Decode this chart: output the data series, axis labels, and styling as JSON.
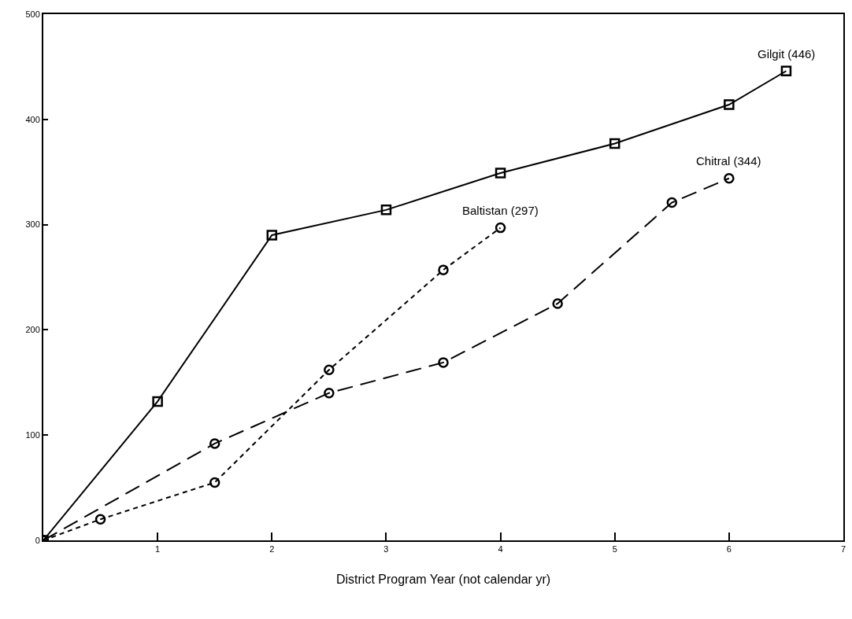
{
  "chart_data": {
    "type": "line",
    "xlabel": "District Program Year (not calendar yr)",
    "xlim": [
      0,
      7
    ],
    "xticks": [
      1,
      2,
      3,
      4,
      5,
      6,
      7
    ],
    "ylim": [
      0,
      500
    ],
    "yticks": [
      0,
      100,
      200,
      300,
      400,
      500
    ],
    "grid": false,
    "series": [
      {
        "name": "Gilgit (446)",
        "color": "#000000",
        "x": [
          0,
          1,
          2,
          3,
          4,
          5,
          6,
          6.5
        ],
        "values": [
          0,
          132,
          290,
          314,
          349,
          377,
          414,
          446
        ],
        "marker": "square",
        "line_style": "solid"
      },
      {
        "name": "Baltistan (297)",
        "color": "#000000",
        "x": [
          0,
          0.5,
          1.5,
          2.5,
          3.5,
          4
        ],
        "values": [
          0,
          20,
          55,
          162,
          257,
          297
        ],
        "marker": "circle",
        "line_style": "dotted"
      },
      {
        "name": "Chitral (344)",
        "color": "#000000",
        "x": [
          0,
          1.5,
          2.5,
          3.5,
          4.5,
          5.5,
          6
        ],
        "values": [
          0,
          92,
          140,
          169,
          225,
          321,
          344
        ],
        "marker": "circle",
        "line_style": "dashed"
      }
    ]
  }
}
